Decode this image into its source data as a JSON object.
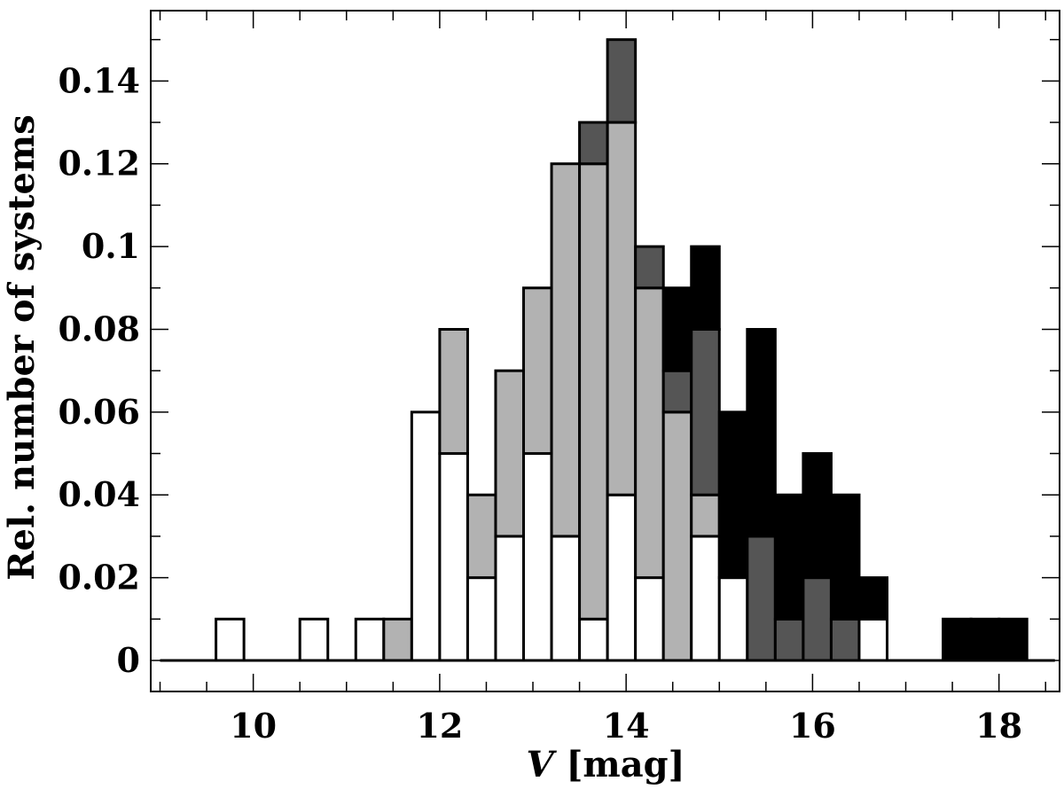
{
  "chart_data": {
    "type": "bar",
    "subtype": "stacked-histogram",
    "title": "",
    "xlabel_var": "V",
    "xlabel_unit": "[mag]",
    "ylabel": "Rel. number of systems",
    "xlim": [
      8.9,
      18.65
    ],
    "ylim": [
      -0.0075,
      0.157
    ],
    "xticks": [
      10,
      12,
      14,
      16,
      18
    ],
    "xtick_labels": [
      "10",
      "12",
      "14",
      "16",
      "18"
    ],
    "yticks": [
      0,
      0.02,
      0.04,
      0.06,
      0.08,
      0.1,
      0.12,
      0.14
    ],
    "ytick_labels": [
      "0",
      "0.02",
      "0.04",
      "0.06",
      "0.08",
      "0.1",
      "0.12",
      "0.14"
    ],
    "bin_width": 0.3,
    "bin_starts": [
      9.0,
      9.3,
      9.6,
      9.9,
      10.2,
      10.5,
      10.8,
      11.1,
      11.4,
      11.7,
      12.0,
      12.3,
      12.6,
      12.9,
      13.2,
      13.5,
      13.8,
      14.1,
      14.4,
      14.7,
      15.0,
      15.3,
      15.6,
      15.9,
      16.2,
      16.5,
      16.8,
      17.1,
      17.4,
      17.7,
      18.0,
      18.3
    ],
    "series": [
      {
        "color": "#ffffff",
        "values": [
          0,
          0,
          0.01,
          0,
          0,
          0.01,
          0,
          0.01,
          0,
          0.06,
          0.05,
          0.02,
          0.03,
          0.05,
          0.03,
          0.01,
          0.04,
          0.02,
          0,
          0.03,
          0.02,
          0,
          0,
          0,
          0,
          0.01,
          0,
          0,
          0,
          0,
          0,
          0
        ]
      },
      {
        "color": "#b2b2b2",
        "values": [
          0,
          0,
          0,
          0,
          0,
          0,
          0,
          0,
          0.01,
          0,
          0.03,
          0.02,
          0.04,
          0.04,
          0.09,
          0.11,
          0.09,
          0.07,
          0.06,
          0.01,
          0,
          0,
          0,
          0,
          0,
          0,
          0,
          0,
          0,
          0,
          0,
          0
        ]
      },
      {
        "color": "#555555",
        "values": [
          0,
          0,
          0,
          0,
          0,
          0,
          0,
          0,
          0,
          0,
          0,
          0,
          0,
          0,
          0,
          0.01,
          0.02,
          0.01,
          0.01,
          0.04,
          0,
          0.03,
          0.01,
          0.02,
          0.01,
          0,
          0,
          0,
          0,
          0,
          0,
          0
        ]
      },
      {
        "color": "#000000",
        "values": [
          0,
          0,
          0,
          0,
          0,
          0,
          0,
          0,
          0,
          0,
          0,
          0,
          0,
          0,
          0,
          0,
          0,
          0,
          0.02,
          0.02,
          0.04,
          0.05,
          0.03,
          0.03,
          0.03,
          0.01,
          0,
          0,
          0.01,
          0.01,
          0.01,
          0
        ]
      }
    ]
  }
}
